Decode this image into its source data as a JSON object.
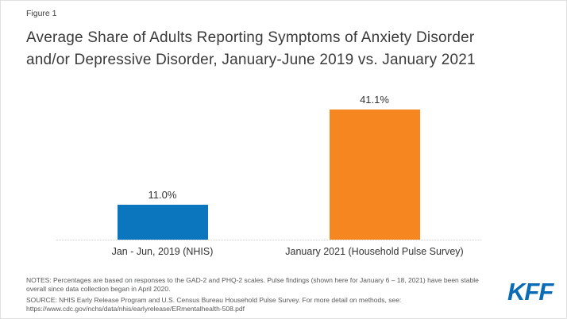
{
  "page": {
    "figure_label": "Figure 1",
    "title_lines": [
      "Average Share of Adults Reporting Symptoms of Anxiety Disorder",
      "and/or Depressive Disorder, January-June 2019 vs. January 2021"
    ]
  },
  "chart_data": {
    "type": "bar",
    "title": "Average Share of Adults Reporting Symptoms of Anxiety Disorder and/or Depressive Disorder, January-June 2019 vs. January 2021",
    "categories": [
      "Jan - Jun, 2019 (NHIS)",
      "January 2021 (Household Pulse Survey)"
    ],
    "values": [
      11.0,
      41.1
    ],
    "value_labels": [
      "11.0%",
      "41.1%"
    ],
    "bar_ids": [
      "jan-jun-2019-nhis",
      "january-2021-household-pulse-survey"
    ],
    "bar_colors": [
      "#0b76be",
      "#f6861f"
    ],
    "xlabel": "",
    "ylabel": "",
    "ylim": [
      0,
      45
    ],
    "grid": false,
    "legend": false,
    "value_label_position": "above-bar",
    "baseline_style": "dotted"
  },
  "footer": {
    "notes": "NOTES: Percentages are based on responses to the GAD-2 and PHQ-2 scales. Pulse findings (shown here for January 6 – 18, 2021) have been stable overall since data collection began in April 2020.",
    "source": "SOURCE: NHIS Early Release Program and U.S. Census Bureau Household Pulse Survey. For more detail on methods, see: https://www.cdc.gov/nchs/data/nhis/earlyrelease/ERmentalhealth-508.pdf",
    "logo_text": "KFF"
  },
  "colors": {
    "bar_blue": "#0b76be",
    "bar_orange": "#f6861f",
    "logo_blue": "#0a6cb5",
    "title_text": "#3a3a3a",
    "footer_text": "#57585a",
    "baseline": "#cfcfcf"
  }
}
